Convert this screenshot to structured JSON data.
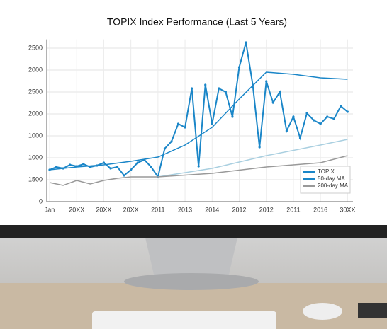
{
  "chart_data": {
    "type": "line",
    "title": "TOPIX Index Performance (Last 5 Years)",
    "xlim": [
      0,
      11.2
    ],
    "xticks": [
      {
        "value": 0,
        "label": "Jan"
      },
      {
        "value": 1,
        "label": "20XX"
      },
      {
        "value": 2,
        "label": "20XX"
      },
      {
        "value": 3,
        "label": "20XX"
      },
      {
        "value": 4,
        "label": "2011"
      },
      {
        "value": 5,
        "label": "2013"
      },
      {
        "value": 6,
        "label": "2014"
      },
      {
        "value": 7,
        "label": "2012"
      },
      {
        "value": 8,
        "label": "2012"
      },
      {
        "value": 9,
        "label": "2011"
      },
      {
        "value": 10,
        "label": "2016"
      },
      {
        "value": 11,
        "label": "30XX"
      }
    ],
    "ylim": [
      0,
      3700
    ],
    "yticks": [
      0,
      {
        "value": 500,
        "label": "1500"
      },
      1000,
      {
        "value": 1500,
        "label": "1000"
      },
      2000,
      2500,
      {
        "value": 3000,
        "label": "2000"
      },
      {
        "value": 3500,
        "label": "2500"
      }
    ],
    "grid": true,
    "legend": "lower right",
    "series": [
      {
        "name": "TOPIX",
        "color": "#1a86c8",
        "markers": true,
        "x": [
          0,
          0.25,
          0.5,
          0.75,
          1,
          1.25,
          1.5,
          1.75,
          2,
          2.25,
          2.5,
          2.75,
          3,
          3.25,
          3.5,
          3.75,
          4,
          4.25,
          4.5,
          4.75,
          5,
          5.25,
          5.5,
          5.75,
          6,
          6.25,
          6.5,
          6.75,
          7,
          7.25,
          7.5,
          7.75,
          8,
          8.25,
          8.5,
          8.75,
          9,
          9.25,
          9.5,
          9.75,
          10,
          10.25,
          10.5,
          10.75,
          11
        ],
        "values": [
          726,
          790,
          758,
          839,
          806,
          855,
          790,
          823,
          887,
          758,
          790,
          597,
          726,
          887,
          952,
          790,
          565,
          1210,
          1371,
          1774,
          1694,
          2581,
          806,
          2662,
          1774,
          2581,
          2500,
          1936,
          3065,
          3629,
          2662,
          1242,
          2742,
          2258,
          2500,
          1613,
          1936,
          1452,
          2016,
          1855,
          1774,
          1936,
          1887,
          2178,
          2048
        ]
      },
      {
        "name": "50-day MA",
        "color": "#1a86c8",
        "x": [
          0,
          1,
          2,
          3,
          4,
          5,
          6,
          7,
          8,
          9,
          10,
          11
        ],
        "values": [
          726,
          790,
          839,
          919,
          1016,
          1290,
          1694,
          2339,
          2952,
          2903,
          2823,
          2790
        ]
      },
      {
        "color": "#a9cfe0",
        "x": [
          4,
          6,
          8,
          10,
          11
        ],
        "values": [
          565,
          758,
          1048,
          1290,
          1419
        ]
      },
      {
        "name": "200-day MA",
        "color": "#999999",
        "x": [
          0,
          0.5,
          1,
          1.5,
          2,
          2.5,
          3,
          4,
          6,
          8,
          9,
          10,
          11
        ],
        "values": [
          435,
          371,
          484,
          403,
          484,
          532,
          565,
          565,
          645,
          790,
          839,
          887,
          1048
        ]
      }
    ]
  }
}
